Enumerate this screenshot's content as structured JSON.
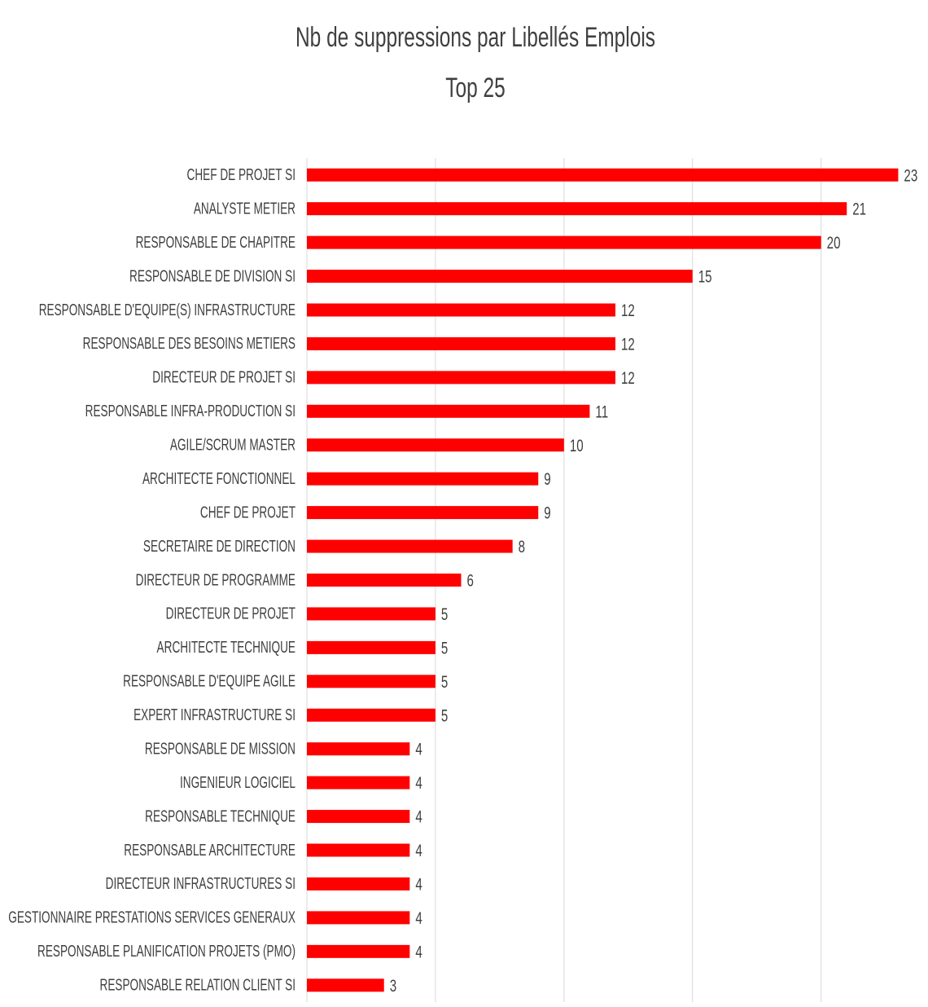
{
  "chart_data": {
    "type": "bar",
    "orientation": "horizontal",
    "title": "Nb de suppressions par Libellés Emplois",
    "subtitle": "Top 25",
    "categories": [
      "CHEF DE PROJET SI",
      "ANALYSTE METIER",
      "RESPONSABLE DE CHAPITRE",
      "RESPONSABLE DE DIVISION SI",
      "RESPONSABLE D'EQUIPE(S) INFRASTRUCTURE",
      "RESPONSABLE DES BESOINS METIERS",
      "DIRECTEUR DE PROJET SI",
      "RESPONSABLE INFRA-PRODUCTION SI",
      "AGILE/SCRUM MASTER",
      "ARCHITECTE FONCTIONNEL",
      "CHEF DE PROJET",
      "SECRETAIRE DE DIRECTION",
      "DIRECTEUR DE PROGRAMME",
      "DIRECTEUR DE PROJET",
      "ARCHITECTE TECHNIQUE",
      "RESPONSABLE D'EQUIPE AGILE",
      "EXPERT INFRASTRUCTURE SI",
      "RESPONSABLE DE MISSION",
      "INGENIEUR LOGICIEL",
      "RESPONSABLE TECHNIQUE",
      "RESPONSABLE ARCHITECTURE",
      "DIRECTEUR INFRASTRUCTURES SI",
      "GESTIONNAIRE PRESTATIONS SERVICES GENERAUX",
      "RESPONSABLE PLANIFICATION PROJETS (PMO)",
      "RESPONSABLE RELATION CLIENT SI"
    ],
    "values": [
      23,
      21,
      20,
      15,
      12,
      12,
      12,
      11,
      10,
      9,
      9,
      8,
      6,
      5,
      5,
      5,
      5,
      4,
      4,
      4,
      4,
      4,
      4,
      4,
      3
    ],
    "color": "#ff0000",
    "xlim": [
      0,
      24
    ],
    "xticks": [
      0,
      5,
      10,
      15,
      20
    ],
    "grid": true
  }
}
